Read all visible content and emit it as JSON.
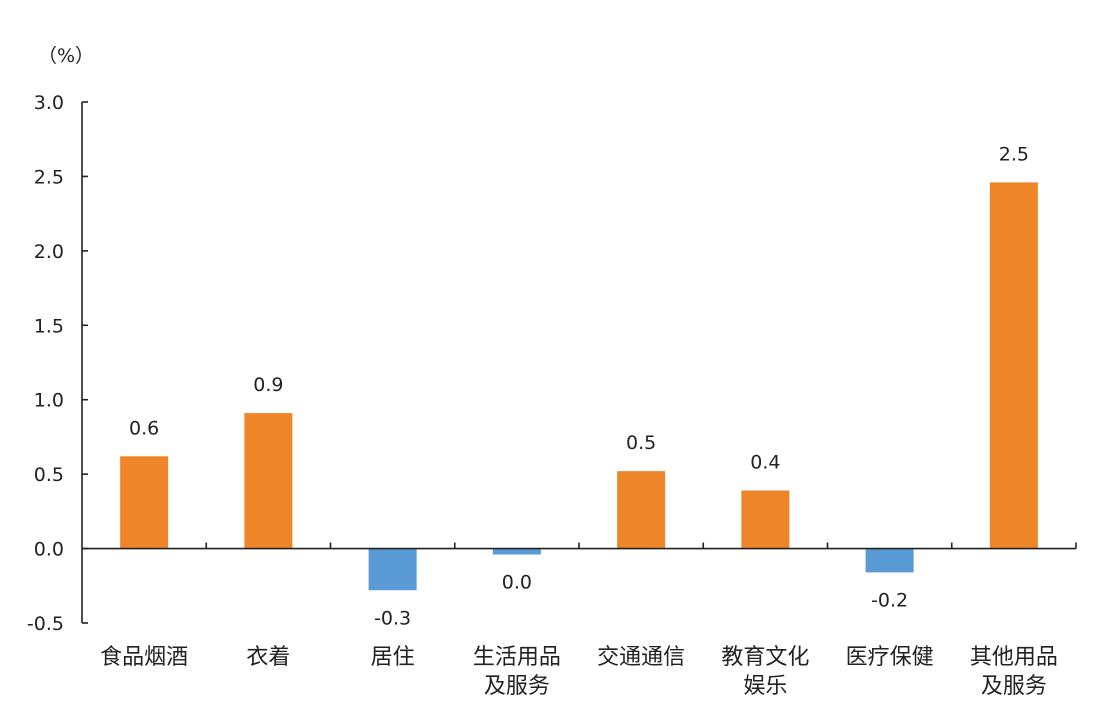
{
  "chart_data": {
    "type": "bar",
    "unit_label": "（%）",
    "categories": [
      [
        "食品烟酒"
      ],
      [
        "衣着"
      ],
      [
        "居住"
      ],
      [
        "生活用品",
        "及服务"
      ],
      [
        "交通通信"
      ],
      [
        "教育文化",
        "娱乐"
      ],
      [
        "医疗保健"
      ],
      [
        "其他用品",
        "及服务"
      ]
    ],
    "values": [
      0.62,
      0.91,
      -0.28,
      -0.04,
      0.52,
      0.39,
      -0.16,
      2.46
    ],
    "data_labels": [
      "0.6",
      "0.9",
      "-0.3",
      "0.0",
      "0.5",
      "0.4",
      "-0.2",
      "2.5"
    ],
    "ylim": [
      -0.5,
      3.0
    ],
    "yticks": [
      3.0,
      2.5,
      2.0,
      1.5,
      1.0,
      0.5,
      0.0,
      -0.5
    ],
    "ytick_labels": [
      "3.0",
      "2.5",
      "2.0",
      "1.5",
      "1.0",
      "0.5",
      "0.0",
      "-0.5"
    ],
    "colors": {
      "positive": "#EE8528",
      "negative": "#5B9BD5"
    },
    "grid": false,
    "legend": "none"
  }
}
